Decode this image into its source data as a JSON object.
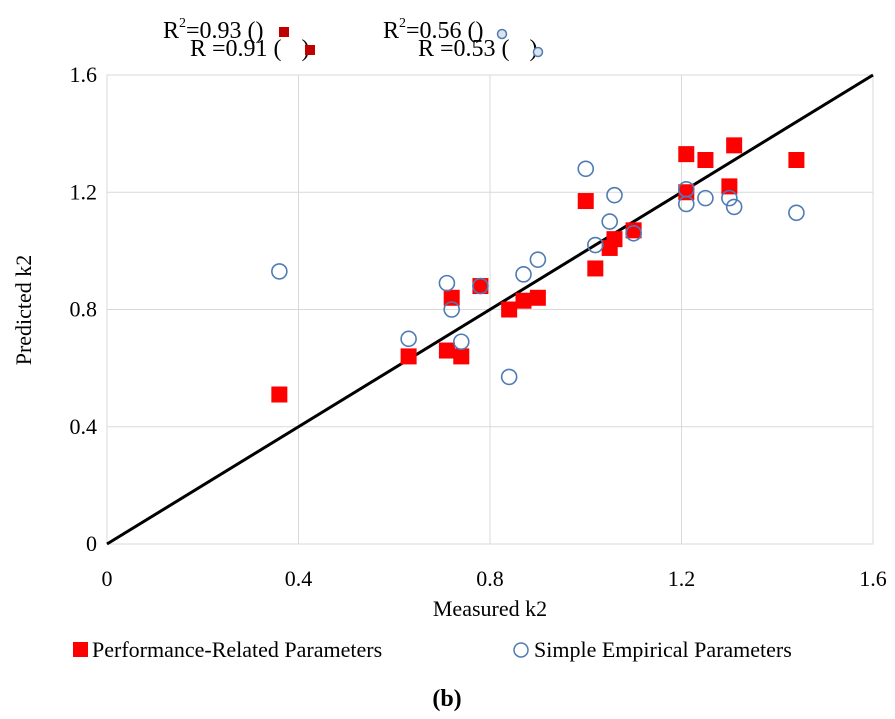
{
  "chart_data": {
    "type": "scatter",
    "title": "",
    "xlabel": "Measured k2",
    "ylabel": "Predicted k2",
    "xlim": [
      0,
      1.6
    ],
    "ylim": [
      0,
      1.6
    ],
    "x_ticks": [
      "0",
      "0.4",
      "0.8",
      "1.2",
      "1.6"
    ],
    "y_ticks": [
      "0",
      "0.4",
      "0.8",
      "1.2",
      "1.6"
    ],
    "grid": true,
    "legend_position": "bottom",
    "reference_line": {
      "from": [
        0,
        0
      ],
      "to": [
        1.6,
        1.6
      ],
      "color": "#000000"
    },
    "series": [
      {
        "name": "Performance-Related Parameters",
        "marker": "filled-square",
        "color": "#ff0000",
        "points": [
          [
            0.36,
            0.51
          ],
          [
            0.63,
            0.64
          ],
          [
            0.71,
            0.66
          ],
          [
            0.72,
            0.84
          ],
          [
            0.74,
            0.64
          ],
          [
            0.78,
            0.88
          ],
          [
            0.84,
            0.8
          ],
          [
            0.87,
            0.83
          ],
          [
            0.9,
            0.84
          ],
          [
            1.0,
            1.17
          ],
          [
            1.02,
            0.94
          ],
          [
            1.05,
            1.01
          ],
          [
            1.06,
            1.04
          ],
          [
            1.1,
            1.07
          ],
          [
            1.21,
            1.33
          ],
          [
            1.21,
            1.2
          ],
          [
            1.25,
            1.31
          ],
          [
            1.3,
            1.22
          ],
          [
            1.31,
            1.36
          ],
          [
            1.44,
            1.31
          ]
        ]
      },
      {
        "name": "Simple Empirical Parameters",
        "marker": "open-circle",
        "color": "#4f7bb5",
        "points": [
          [
            0.36,
            0.93
          ],
          [
            0.63,
            0.7
          ],
          [
            0.71,
            0.89
          ],
          [
            0.72,
            0.8
          ],
          [
            0.74,
            0.69
          ],
          [
            0.78,
            0.88
          ],
          [
            0.84,
            0.57
          ],
          [
            0.87,
            0.92
          ],
          [
            0.9,
            0.97
          ],
          [
            1.0,
            1.28
          ],
          [
            1.02,
            1.02
          ],
          [
            1.05,
            1.1
          ],
          [
            1.06,
            1.19
          ],
          [
            1.1,
            1.06
          ],
          [
            1.21,
            1.21
          ],
          [
            1.21,
            1.16
          ],
          [
            1.25,
            1.18
          ],
          [
            1.3,
            1.18
          ],
          [
            1.31,
            1.15
          ],
          [
            1.44,
            1.13
          ]
        ]
      }
    ],
    "annotations": {
      "r2_perf": "R",
      "r2_perf_sup": "2",
      "r2_perf_value": "=0.93 (",
      "r2_perf_close": ")",
      "r_perf": "R =0.91 (",
      "r_perf_close": ")",
      "r2_simple": "R",
      "r2_simple_sup": "2",
      "r2_simple_value": "=0.56 (",
      "r2_simple_close": ")",
      "r_simple": "R =0.53 (",
      "r_simple_close": ")"
    },
    "caption": "(b)"
  }
}
